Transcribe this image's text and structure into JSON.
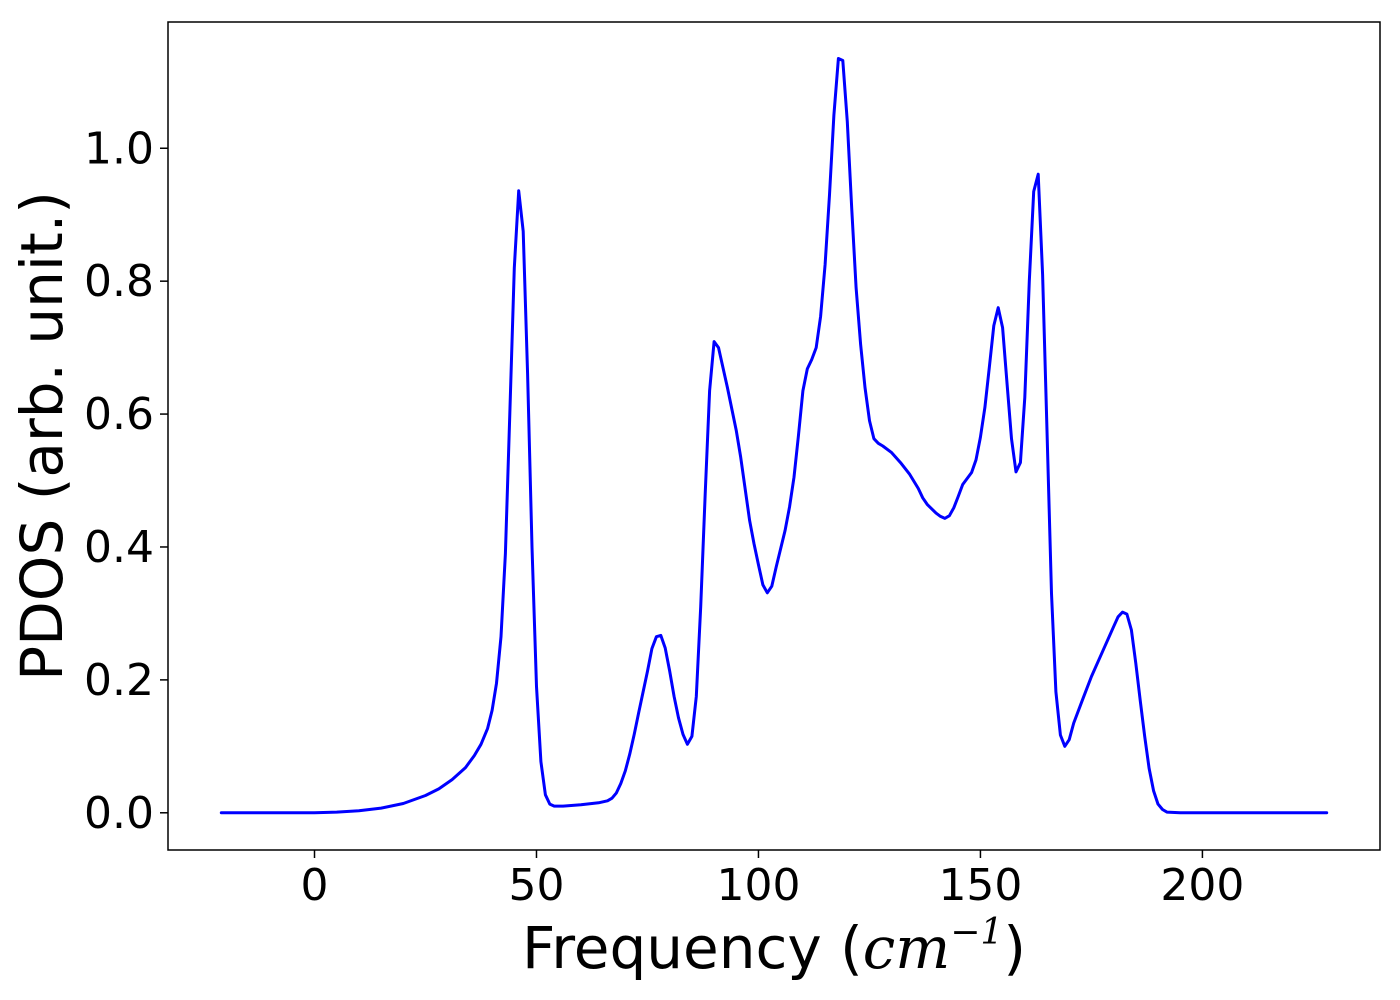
{
  "chart_data": {
    "type": "line",
    "xlabel_prefix": "Frequency (",
    "xlabel_unit": "cm",
    "xlabel_exponent": "−1",
    "xlabel_suffix": ")",
    "ylabel": "PDOS (arb. unit.)",
    "xlim": [
      -33,
      240
    ],
    "ylim": [
      -0.056,
      1.19
    ],
    "xticks": [
      0,
      50,
      100,
      150,
      200
    ],
    "yticks": [
      0.0,
      0.2,
      0.4,
      0.6,
      0.8,
      1.0
    ],
    "xtick_labels": [
      "0",
      "50",
      "100",
      "150",
      "200"
    ],
    "ytick_labels": [
      "0.0",
      "0.2",
      "0.4",
      "0.6",
      "0.8",
      "1.0"
    ],
    "grid": false,
    "series": [
      {
        "color": "#0000ff",
        "points": [
          [
            -21,
            0.0
          ],
          [
            -10,
            0.0
          ],
          [
            0,
            0.0
          ],
          [
            5,
            0.001
          ],
          [
            10,
            0.003
          ],
          [
            15,
            0.007
          ],
          [
            20,
            0.014
          ],
          [
            25,
            0.026
          ],
          [
            28,
            0.036
          ],
          [
            31,
            0.05
          ],
          [
            34,
            0.068
          ],
          [
            36,
            0.086
          ],
          [
            37.5,
            0.103
          ],
          [
            39,
            0.127
          ],
          [
            40,
            0.154
          ],
          [
            41,
            0.195
          ],
          [
            42,
            0.265
          ],
          [
            43,
            0.39
          ],
          [
            44,
            0.6
          ],
          [
            45,
            0.82
          ],
          [
            46,
            0.936
          ],
          [
            47,
            0.875
          ],
          [
            48,
            0.66
          ],
          [
            49,
            0.4
          ],
          [
            50,
            0.19
          ],
          [
            51,
            0.077
          ],
          [
            52,
            0.027
          ],
          [
            53,
            0.013
          ],
          [
            54,
            0.01
          ],
          [
            56,
            0.01
          ],
          [
            60,
            0.012
          ],
          [
            64,
            0.015
          ],
          [
            66,
            0.018
          ],
          [
            67,
            0.022
          ],
          [
            68,
            0.03
          ],
          [
            69,
            0.044
          ],
          [
            70,
            0.063
          ],
          [
            71,
            0.088
          ],
          [
            72,
            0.118
          ],
          [
            73,
            0.15
          ],
          [
            75,
            0.213
          ],
          [
            76,
            0.247
          ],
          [
            77,
            0.265
          ],
          [
            78,
            0.267
          ],
          [
            79,
            0.248
          ],
          [
            80,
            0.213
          ],
          [
            81,
            0.175
          ],
          [
            82,
            0.143
          ],
          [
            83,
            0.118
          ],
          [
            84,
            0.103
          ],
          [
            85,
            0.115
          ],
          [
            86,
            0.175
          ],
          [
            87,
            0.31
          ],
          [
            88,
            0.48
          ],
          [
            89,
            0.635
          ],
          [
            90,
            0.709
          ],
          [
            91,
            0.7
          ],
          [
            93,
            0.64
          ],
          [
            95,
            0.575
          ],
          [
            96,
            0.535
          ],
          [
            98,
            0.44
          ],
          [
            99,
            0.405
          ],
          [
            100,
            0.373
          ],
          [
            101,
            0.343
          ],
          [
            102,
            0.331
          ],
          [
            103,
            0.341
          ],
          [
            104,
            0.37
          ],
          [
            106,
            0.425
          ],
          [
            107,
            0.46
          ],
          [
            108,
            0.505
          ],
          [
            109,
            0.567
          ],
          [
            110,
            0.635
          ],
          [
            111,
            0.668
          ],
          [
            112,
            0.682
          ],
          [
            113,
            0.7
          ],
          [
            114,
            0.747
          ],
          [
            115,
            0.825
          ],
          [
            116,
            0.93
          ],
          [
            117,
            1.05
          ],
          [
            118,
            1.135
          ],
          [
            119,
            1.132
          ],
          [
            120,
            1.04
          ],
          [
            121,
            0.91
          ],
          [
            122,
            0.79
          ],
          [
            123,
            0.705
          ],
          [
            124,
            0.64
          ],
          [
            125,
            0.59
          ],
          [
            126,
            0.563
          ],
          [
            127,
            0.556
          ],
          [
            128,
            0.552
          ],
          [
            130,
            0.542
          ],
          [
            132,
            0.527
          ],
          [
            134,
            0.51
          ],
          [
            136,
            0.488
          ],
          [
            137,
            0.474
          ],
          [
            138,
            0.464
          ],
          [
            140,
            0.451
          ],
          [
            141,
            0.446
          ],
          [
            142,
            0.443
          ],
          [
            143,
            0.447
          ],
          [
            144,
            0.459
          ],
          [
            145,
            0.476
          ],
          [
            146,
            0.494
          ],
          [
            148,
            0.512
          ],
          [
            149,
            0.531
          ],
          [
            150,
            0.565
          ],
          [
            151,
            0.61
          ],
          [
            152,
            0.67
          ],
          [
            153,
            0.733
          ],
          [
            154,
            0.76
          ],
          [
            155,
            0.73
          ],
          [
            156,
            0.645
          ],
          [
            157,
            0.563
          ],
          [
            158,
            0.513
          ],
          [
            159,
            0.527
          ],
          [
            160,
            0.625
          ],
          [
            161,
            0.8
          ],
          [
            162,
            0.935
          ],
          [
            163,
            0.961
          ],
          [
            164,
            0.81
          ],
          [
            165,
            0.575
          ],
          [
            166,
            0.33
          ],
          [
            167,
            0.182
          ],
          [
            168,
            0.117
          ],
          [
            169,
            0.1
          ],
          [
            170,
            0.11
          ],
          [
            171,
            0.135
          ],
          [
            173,
            0.17
          ],
          [
            175,
            0.205
          ],
          [
            178,
            0.25
          ],
          [
            180,
            0.28
          ],
          [
            181,
            0.295
          ],
          [
            182,
            0.302
          ],
          [
            183,
            0.299
          ],
          [
            184,
            0.275
          ],
          [
            185,
            0.225
          ],
          [
            186,
            0.168
          ],
          [
            187,
            0.115
          ],
          [
            188,
            0.067
          ],
          [
            189,
            0.033
          ],
          [
            190,
            0.013
          ],
          [
            191,
            0.005
          ],
          [
            192,
            0.001
          ],
          [
            195,
            0.0
          ],
          [
            200,
            0.0
          ],
          [
            228,
            0.0
          ]
        ]
      }
    ]
  }
}
